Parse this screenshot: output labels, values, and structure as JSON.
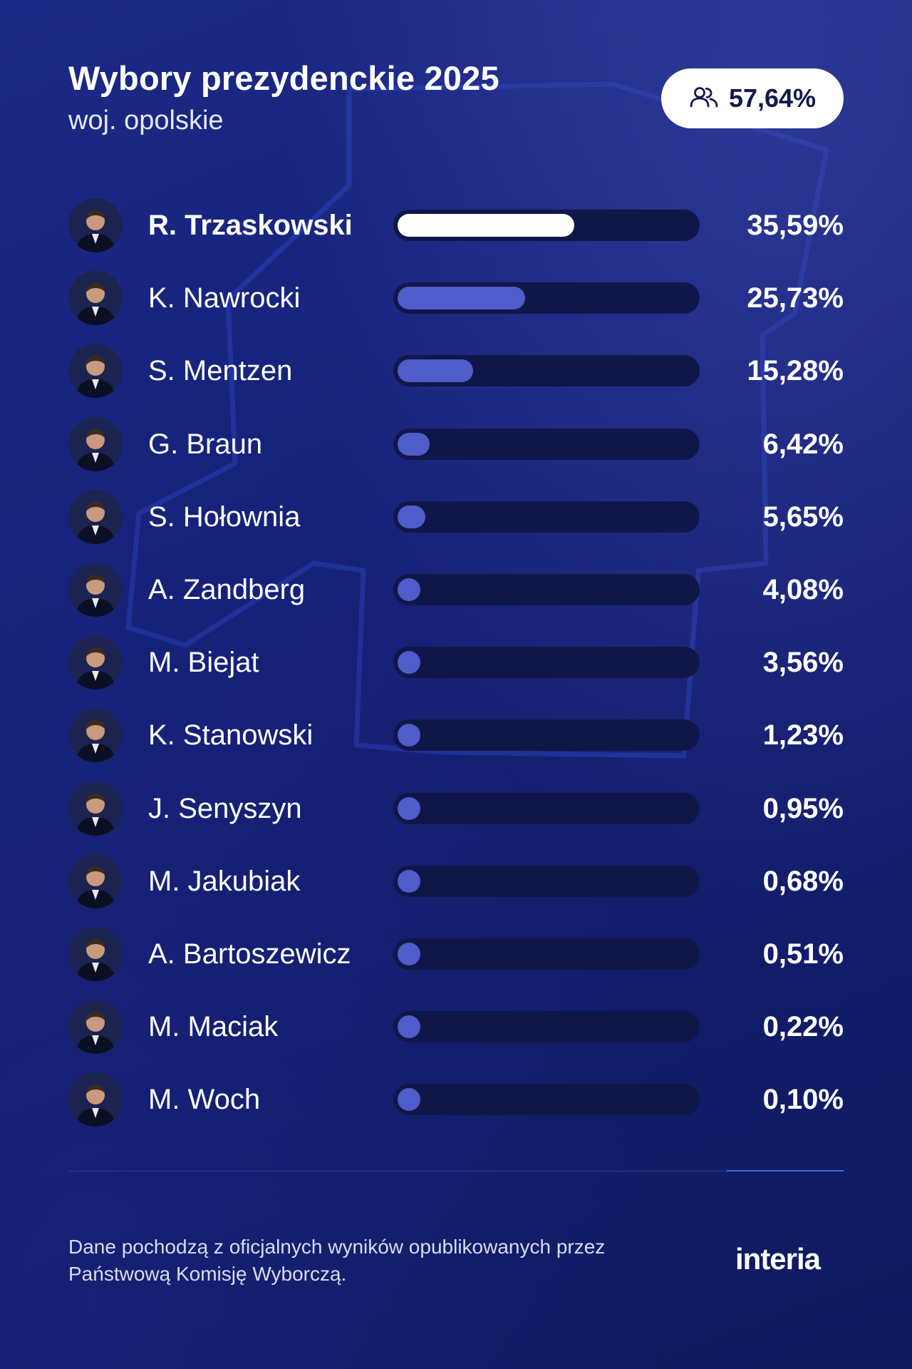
{
  "header": {
    "title": "Wybory prezydenckie 2025",
    "subtitle": "woj. opolskie",
    "turnout": "57,64%",
    "turnout_icon": "people-icon"
  },
  "colors": {
    "background": "#16227a",
    "track": "#101748",
    "bar": "#4f5cc9",
    "leader_bar": "#ffffff",
    "badge": "#ffffff"
  },
  "chart_data": {
    "type": "bar",
    "categories": [
      "R. Trzaskowski",
      "K. Nawrocki",
      "S. Mentzen",
      "G. Braun",
      "S. Hołownia",
      "A. Zandberg",
      "M. Biejat",
      "K. Stanowski",
      "J. Senyszyn",
      "M. Jakubiak",
      "A. Bartoszewicz",
      "M. Maciak",
      "M. Woch"
    ],
    "values": [
      35.59,
      25.73,
      15.28,
      6.42,
      5.65,
      4.08,
      3.56,
      1.23,
      0.95,
      0.68,
      0.51,
      0.22,
      0.1
    ],
    "labels": [
      "35,59%",
      "25,73%",
      "15,28%",
      "6,42%",
      "5,65%",
      "4,08%",
      "3,56%",
      "1,23%",
      "0,95%",
      "0,68%",
      "0,51%",
      "0,22%",
      "0,10%"
    ],
    "title": "Wybory prezydenckie 2025",
    "orientation": "horizontal",
    "xlim": [
      0,
      60
    ]
  },
  "footer": {
    "line1": "Dane pochodzą z oficjalnych wyników opublikowanych przez",
    "line2": "Państwową Komisję Wyborczą.",
    "logo": "interia"
  }
}
